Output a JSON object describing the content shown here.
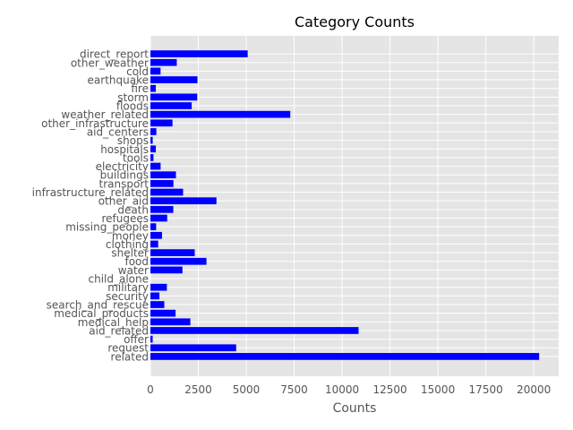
{
  "colors": {
    "plot_background": "#e5e5e5",
    "grid": "#ffffff",
    "bar": "#0000ff",
    "text": "#555555",
    "title": "#000000"
  },
  "chart_data": {
    "type": "bar",
    "orientation": "horizontal",
    "title": "Category Counts",
    "xlabel": "Counts",
    "ylabel": "",
    "xlim": [
      0,
      21300
    ],
    "xticks": [
      0,
      2500,
      5000,
      7500,
      10000,
      12500,
      15000,
      17500,
      20000
    ],
    "xtick_labels": [
      "0",
      "2500",
      "5000",
      "7500",
      "10000",
      "12500",
      "15000",
      "17500",
      "20000"
    ],
    "grid": true,
    "categories": [
      "related",
      "request",
      "offer",
      "aid_related",
      "medical_help",
      "medical_products",
      "search_and_rescue",
      "security",
      "military",
      "child_alone",
      "water",
      "food",
      "shelter",
      "clothing",
      "money",
      "missing_people",
      "refugees",
      "death",
      "other_aid",
      "infrastructure_related",
      "transport",
      "buildings",
      "electricity",
      "tools",
      "hospitals",
      "shops",
      "aid_centers",
      "other_infrastructure",
      "weather_related",
      "floods",
      "storm",
      "fire",
      "earthquake",
      "cold",
      "other_weather",
      "direct_report"
    ],
    "values": [
      20282,
      4474,
      118,
      10860,
      2084,
      1313,
      724,
      471,
      860,
      0,
      1672,
      2923,
      2314,
      405,
      604,
      298,
      875,
      1194,
      3446,
      1705,
      1201,
      1333,
      532,
      159,
      283,
      120,
      309,
      1151,
      7297,
      2155,
      2443,
      282,
      2455,
      530,
      1376,
      5075
    ]
  }
}
